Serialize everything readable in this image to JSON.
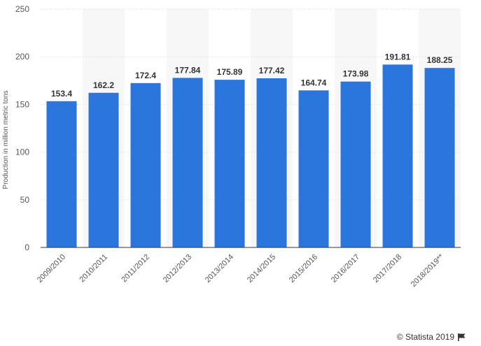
{
  "chart_data": {
    "type": "bar",
    "categories": [
      "2009/2010",
      "2010/2011",
      "2011/2012",
      "2012/2013",
      "2013/2014",
      "2014/2015",
      "2015/2016",
      "2016/2017",
      "2017/2018",
      "2018/2019**"
    ],
    "values": [
      153.4,
      162.2,
      172.4,
      177.84,
      175.89,
      177.42,
      164.74,
      173.98,
      191.81,
      188.25
    ],
    "value_labels": [
      "153.4",
      "162.2",
      "172.4",
      "177.84",
      "175.89",
      "177.42",
      "164.74",
      "173.98",
      "191.81",
      "188.25"
    ],
    "ylabel": "Production in million metric tons",
    "ylim": [
      0,
      250
    ],
    "yticks": [
      "0",
      "50",
      "100",
      "150",
      "200",
      "250"
    ],
    "grid": true,
    "bar_color": "#2a76dd"
  },
  "credit": {
    "text": "© Statista 2019",
    "icon": "flag-icon"
  }
}
